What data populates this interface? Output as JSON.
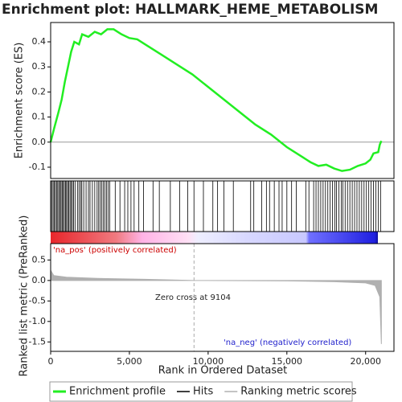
{
  "chart_data": [
    {
      "type": "line",
      "title": "Enrichment plot: HALLMARK_HEME_METABOLISM",
      "ylabel": "Enrichment score (ES)",
      "name": "Enrichment profile",
      "color": "#22ee22",
      "ylim": [
        -0.145,
        0.477
      ],
      "yticks": [
        0.4,
        0.3,
        0.2,
        0.1,
        {
          "value": 0,
          "label": "0.0"
        },
        -0.1
      ],
      "x": [
        0,
        200,
        500,
        700,
        900,
        1100,
        1300,
        1500,
        1800,
        2000,
        2400,
        2800,
        3200,
        3600,
        4000,
        4500,
        5000,
        5500,
        6000,
        7000,
        8000,
        9000,
        10000,
        11000,
        12000,
        13000,
        14000,
        15000,
        16000,
        16500,
        17000,
        17500,
        18000,
        18500,
        19000,
        19500,
        20000,
        20300,
        20500,
        20800,
        20900,
        21000
      ],
      "values": [
        0,
        0.05,
        0.12,
        0.17,
        0.24,
        0.3,
        0.36,
        0.4,
        0.39,
        0.43,
        0.42,
        0.44,
        0.43,
        0.45,
        0.45,
        0.43,
        0.415,
        0.41,
        0.39,
        0.35,
        0.31,
        0.27,
        0.22,
        0.17,
        0.12,
        0.07,
        0.03,
        -0.02,
        -0.06,
        -0.08,
        -0.095,
        -0.09,
        -0.105,
        -0.115,
        -0.11,
        -0.095,
        -0.085,
        -0.07,
        -0.045,
        -0.04,
        -0.01,
        0.005
      ]
    },
    {
      "type": "rug",
      "name": "Hits",
      "color": "#000000",
      "x": [
        20,
        90,
        160,
        240,
        300,
        380,
        450,
        520,
        600,
        660,
        730,
        800,
        870,
        940,
        1010,
        1080,
        1150,
        1230,
        1300,
        1380,
        1460,
        1550,
        1700,
        1800,
        1900,
        1980,
        2100,
        2250,
        2400,
        2500,
        2650,
        2800,
        2950,
        3050,
        3150,
        3250,
        3350,
        3450,
        3550,
        3650,
        3750,
        4100,
        4400,
        4700,
        4900,
        5100,
        5300,
        5600,
        5900,
        6500,
        6900,
        7600,
        8200,
        8700,
        9100,
        9700,
        10300,
        10600,
        11000,
        11600,
        12700,
        12900,
        13400,
        13700,
        13900,
        14200,
        14500,
        14700,
        15000,
        15300,
        15600,
        16200,
        16400,
        16700,
        16850,
        17000,
        17150,
        17300,
        17450,
        17600,
        17750,
        17900,
        18050,
        18150,
        18300,
        18450,
        18550,
        18700,
        18850,
        19000,
        19150,
        19300,
        19450,
        19600,
        19750,
        19900,
        20050,
        20200,
        20350,
        20500,
        20650,
        20800,
        20950
      ]
    },
    {
      "type": "area",
      "name": "Ranking metric scores",
      "color": "#b0b0b0",
      "ylabel": "Ranked list metric (PreRanked)",
      "xlabel": "Rank in Ordered Dataset",
      "xlim": [
        0,
        21800
      ],
      "xticks": [
        0,
        {
          "value": 5000,
          "label": "5,000"
        },
        {
          "value": 10000,
          "label": "10,000"
        },
        {
          "value": 15000,
          "label": "15,000"
        },
        {
          "value": 20000,
          "label": "20,000"
        }
      ],
      "ylim": [
        -1.73,
        0.9
      ],
      "yticks": [
        0.5,
        {
          "value": 0,
          "label": "0.0"
        },
        -0.5,
        {
          "value": -1,
          "label": "-1.0"
        },
        -1.5
      ],
      "x": [
        0,
        200,
        1000,
        3000,
        6000,
        9104,
        15000,
        18000,
        20000,
        20600,
        20900,
        21000
      ],
      "values": [
        0.25,
        0.12,
        0.08,
        0.05,
        0.03,
        0,
        -0.01,
        -0.03,
        -0.06,
        -0.12,
        -0.4,
        -1.55
      ],
      "zero_cross": 9104,
      "annotations": [
        "'na_pos' (positively correlated)",
        "Zero cross at 9104",
        "'na_neg' (negatively correlated)"
      ]
    }
  ]
}
